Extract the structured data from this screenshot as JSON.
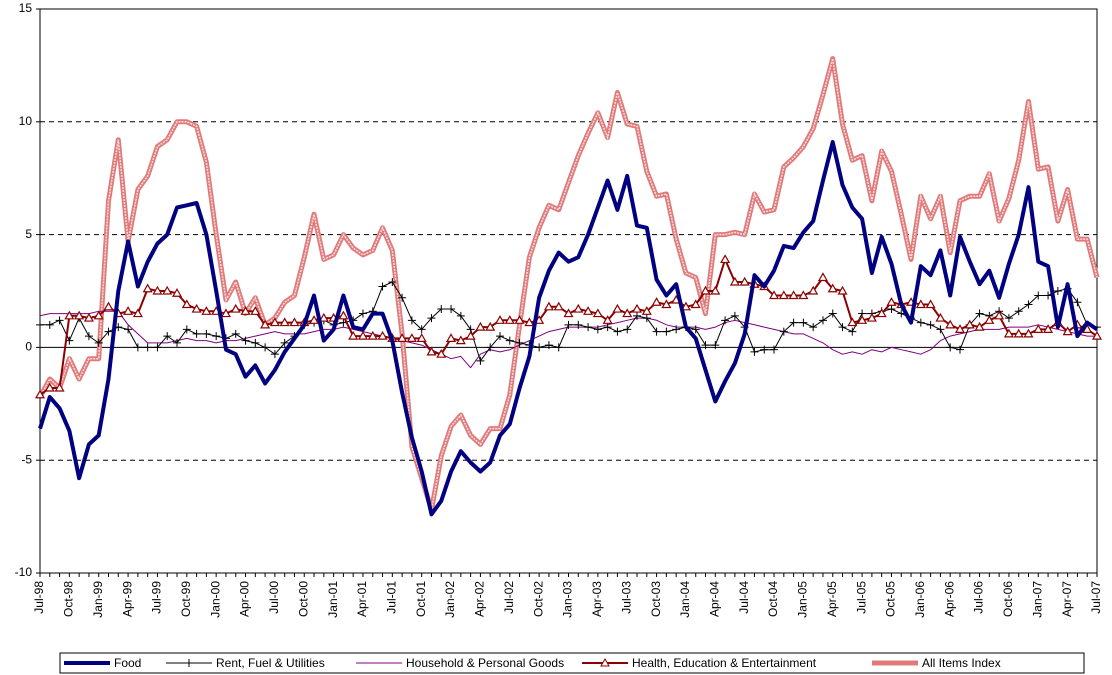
{
  "chart_data": {
    "type": "line",
    "categories": [
      "Jul-98",
      null,
      null,
      "Oct-98",
      null,
      null,
      "Jan-99",
      null,
      null,
      "Apr-99",
      null,
      null,
      "Jul-99",
      null,
      null,
      "Oct-99",
      null,
      null,
      "Jan-00",
      null,
      null,
      "Apr-00",
      null,
      null,
      "Jul-00",
      null,
      null,
      "Oct-00",
      null,
      null,
      "Jan-01",
      null,
      null,
      "Apr-01",
      null,
      null,
      "Jul-01",
      null,
      null,
      "Oct-01",
      null,
      null,
      "Jan-02",
      null,
      null,
      "Apr-02",
      null,
      null,
      "Jul-02",
      null,
      null,
      "Oct-02",
      null,
      null,
      "Jan-03",
      null,
      null,
      "Apr-03",
      null,
      null,
      "Jul-03",
      null,
      null,
      "Oct-03",
      null,
      null,
      "Jan-04",
      null,
      null,
      "Apr-04",
      null,
      null,
      "Jul-04",
      null,
      null,
      "Oct-04",
      null,
      null,
      "Jan-05",
      null,
      null,
      "Apr-05",
      null,
      null,
      "Jul-05",
      null,
      null,
      "Oct-05",
      null,
      null,
      "Jan-06",
      null,
      null,
      "Apr-06",
      null,
      null,
      "Jul-06",
      null,
      null,
      "Oct-06",
      null,
      null,
      "Jan-07",
      null,
      null,
      "Apr-07",
      null,
      null,
      "Jul-07"
    ],
    "series": [
      {
        "name": "Food",
        "color": "#000080",
        "marker": "none",
        "values": [
          -3.6,
          -2.2,
          -2.7,
          -3.7,
          -5.8,
          -4.3,
          -3.9,
          -1.4,
          2.5,
          4.7,
          2.7,
          3.8,
          4.6,
          5.0,
          6.2,
          6.3,
          6.4,
          5.0,
          2.5,
          -0.1,
          -0.3,
          -1.3,
          -0.8,
          -1.6,
          -1.0,
          -0.2,
          0.4,
          1.0,
          2.3,
          0.3,
          0.8,
          2.3,
          0.9,
          0.8,
          1.5,
          1.5,
          0.3,
          -2.0,
          -4.0,
          -5.5,
          -7.4,
          -6.8,
          -5.5,
          -4.6,
          -5.1,
          -5.5,
          -5.1,
          -3.9,
          -3.4,
          -1.8,
          -0.4,
          2.2,
          3.4,
          4.2,
          3.8,
          4.0,
          5.0,
          6.2,
          7.4,
          6.1,
          7.6,
          5.4,
          5.3,
          3.0,
          2.3,
          2.8,
          0.9,
          0.4,
          -1.0,
          -2.4,
          -1.5,
          -0.7,
          0.6,
          3.2,
          2.7,
          3.4,
          4.5,
          4.4,
          5.1,
          5.6,
          7.4,
          9.1,
          7.2,
          6.2,
          5.7,
          3.3,
          4.9,
          3.7,
          1.9,
          1.1,
          3.6,
          3.2,
          4.3,
          2.3,
          4.9,
          3.8,
          2.8,
          3.4,
          2.2,
          3.7,
          5.0,
          7.1,
          3.8,
          3.6,
          0.9,
          2.8,
          0.5,
          1.1,
          0.8
        ]
      },
      {
        "name": "Rent, Fuel & Utilities",
        "color": "#000000",
        "marker": "plus",
        "values": [
          1.0,
          1.0,
          1.2,
          0.3,
          1.3,
          0.5,
          0.2,
          0.7,
          0.9,
          0.8,
          0.0,
          0.0,
          0.0,
          0.5,
          0.2,
          0.8,
          0.6,
          0.6,
          0.5,
          0.4,
          0.6,
          0.3,
          0.2,
          0.0,
          -0.3,
          0.2,
          0.5,
          1.0,
          1.1,
          1.2,
          1.0,
          1.1,
          1.2,
          1.5,
          1.6,
          2.7,
          2.9,
          2.2,
          1.2,
          0.8,
          1.3,
          1.7,
          1.7,
          1.4,
          0.8,
          -0.6,
          0.0,
          0.5,
          0.3,
          0.2,
          0.1,
          0.0,
          0.1,
          0.0,
          1.0,
          1.0,
          0.9,
          0.8,
          0.9,
          0.7,
          0.8,
          1.4,
          1.3,
          0.7,
          0.7,
          0.8,
          0.9,
          0.8,
          0.1,
          0.1,
          1.2,
          1.4,
          0.9,
          -0.2,
          -0.1,
          -0.1,
          0.7,
          1.1,
          1.1,
          0.9,
          1.2,
          1.5,
          0.9,
          0.7,
          1.5,
          1.5,
          1.6,
          1.7,
          1.5,
          1.3,
          1.1,
          1.0,
          0.8,
          0.0,
          -0.1,
          1.0,
          1.5,
          1.4,
          1.6,
          1.3,
          1.6,
          1.9,
          2.3,
          2.3,
          2.5,
          2.6,
          2.0,
          1.0,
          0.9
        ]
      },
      {
        "name": "Household & Personal Goods",
        "color": "#800080",
        "marker": "none",
        "values": [
          1.4,
          1.5,
          1.5,
          1.5,
          1.5,
          1.5,
          1.6,
          1.6,
          1.6,
          1.0,
          0.6,
          0.2,
          0.2,
          0.2,
          0.3,
          0.4,
          0.3,
          0.3,
          0.2,
          0.3,
          0.3,
          0.4,
          0.5,
          0.6,
          0.7,
          0.6,
          0.6,
          0.6,
          0.7,
          0.8,
          0.8,
          0.9,
          0.8,
          0.7,
          0.6,
          0.5,
          0.4,
          0.3,
          0.2,
          0.1,
          -0.1,
          -0.3,
          -0.5,
          -0.4,
          -0.9,
          -0.3,
          -0.1,
          -0.2,
          -0.1,
          0.1,
          0.3,
          0.5,
          0.7,
          0.8,
          0.9,
          0.9,
          0.9,
          0.9,
          1.0,
          1.1,
          1.2,
          1.3,
          1.3,
          1.2,
          1.0,
          0.9,
          0.9,
          0.9,
          0.8,
          0.9,
          1.1,
          1.2,
          1.1,
          1.0,
          0.9,
          0.8,
          0.7,
          0.6,
          0.6,
          0.4,
          0.2,
          -0.1,
          -0.3,
          -0.2,
          -0.3,
          -0.1,
          -0.2,
          0.0,
          -0.1,
          -0.2,
          -0.3,
          -0.1,
          0.3,
          0.5,
          0.6,
          0.7,
          0.8,
          0.8,
          0.8,
          0.9,
          0.9,
          0.9,
          1.0,
          0.9,
          0.8,
          0.7,
          0.6,
          0.5,
          0.5
        ]
      },
      {
        "name": "Health, Education & Entertainment",
        "color": "#8b0000",
        "marker": "triangle",
        "values": [
          -2.1,
          -1.8,
          -1.8,
          1.4,
          1.4,
          1.3,
          1.4,
          1.8,
          1.5,
          1.6,
          1.5,
          2.6,
          2.5,
          2.5,
          2.4,
          1.9,
          1.7,
          1.6,
          1.6,
          1.5,
          1.7,
          1.6,
          1.6,
          1.0,
          1.1,
          1.1,
          1.1,
          1.1,
          1.2,
          1.3,
          1.3,
          1.4,
          0.5,
          0.5,
          0.5,
          0.5,
          0.4,
          0.4,
          0.4,
          0.4,
          -0.2,
          -0.3,
          0.4,
          0.3,
          0.5,
          0.9,
          0.9,
          1.2,
          1.2,
          1.2,
          1.1,
          1.2,
          1.8,
          1.8,
          1.5,
          1.7,
          1.6,
          1.5,
          1.2,
          1.7,
          1.5,
          1.7,
          1.6,
          2.0,
          1.9,
          2.1,
          1.8,
          1.9,
          2.5,
          2.5,
          3.9,
          2.9,
          2.9,
          2.8,
          2.7,
          2.3,
          2.3,
          2.3,
          2.3,
          2.5,
          3.1,
          2.6,
          2.5,
          1.1,
          1.2,
          1.3,
          1.5,
          2.0,
          1.9,
          2.0,
          1.9,
          1.9,
          1.3,
          1.0,
          0.8,
          1.0,
          0.9,
          1.2,
          1.4,
          0.6,
          0.6,
          0.6,
          0.8,
          0.8,
          1.1,
          0.7,
          1.0,
          0.8,
          0.5
        ]
      },
      {
        "name": "All Items Index",
        "color": "#e07a7a",
        "marker": "none",
        "values": [
          -2.2,
          -1.4,
          -1.8,
          -0.5,
          -1.4,
          -0.5,
          -0.5,
          6.5,
          9.2,
          4.7,
          7.0,
          7.6,
          8.9,
          9.2,
          10.0,
          10.0,
          9.8,
          8.2,
          5.0,
          2.1,
          2.9,
          1.5,
          2.2,
          1.0,
          1.3,
          2.0,
          2.3,
          4.0,
          5.9,
          3.9,
          4.1,
          5.0,
          4.4,
          4.1,
          4.3,
          5.3,
          4.3,
          0.6,
          -4.4,
          -5.8,
          -7.2,
          -4.8,
          -3.5,
          -3.0,
          -3.9,
          -4.3,
          -3.6,
          -3.6,
          -2.1,
          1.0,
          4.0,
          5.3,
          6.3,
          6.1,
          7.3,
          8.5,
          9.5,
          10.4,
          9.3,
          11.3,
          9.9,
          9.8,
          7.8,
          6.7,
          6.8,
          4.8,
          3.3,
          3.1,
          1.5,
          5.0,
          5.0,
          5.1,
          5.0,
          6.8,
          6.0,
          6.1,
          8.0,
          8.4,
          8.9,
          9.7,
          11.2,
          12.8,
          9.9,
          8.3,
          8.5,
          6.5,
          8.7,
          7.8,
          5.9,
          3.9,
          6.7,
          5.7,
          6.7,
          4.2,
          6.5,
          6.7,
          6.7,
          7.7,
          5.6,
          6.6,
          8.3,
          10.9,
          7.9,
          8.0,
          5.6,
          7.0,
          4.8,
          4.8,
          3.1
        ]
      }
    ],
    "ylim": [
      -10,
      15
    ],
    "yticks": [
      -10,
      -5,
      0,
      5,
      10,
      15
    ],
    "grid": true,
    "legend": "bottom"
  }
}
